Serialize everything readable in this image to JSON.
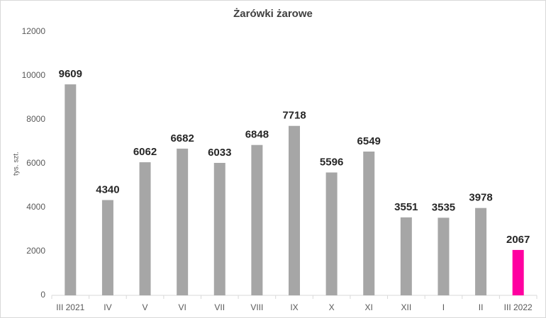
{
  "chart_data": {
    "type": "bar",
    "title": "Żarówki żarowe",
    "y_label": "tys. szt.",
    "categories": [
      "III 2021",
      "IV",
      "V",
      "VI",
      "VII",
      "VIII",
      "IX",
      "X",
      "XI",
      "XII",
      "I",
      "II",
      "III 2022"
    ],
    "values": [
      9609,
      4340,
      6062,
      6682,
      6033,
      6848,
      7718,
      5596,
      6549,
      3551,
      3535,
      3978,
      2067
    ],
    "colors": [
      "#a6a6a6",
      "#a6a6a6",
      "#a6a6a6",
      "#a6a6a6",
      "#a6a6a6",
      "#a6a6a6",
      "#a6a6a6",
      "#a6a6a6",
      "#a6a6a6",
      "#a6a6a6",
      "#a6a6a6",
      "#a6a6a6",
      "#ff00a0"
    ],
    "ylim": [
      0,
      12000
    ],
    "yticks": [
      0,
      2000,
      4000,
      6000,
      8000,
      10000,
      12000
    ],
    "grid": false,
    "data_labels": true
  }
}
